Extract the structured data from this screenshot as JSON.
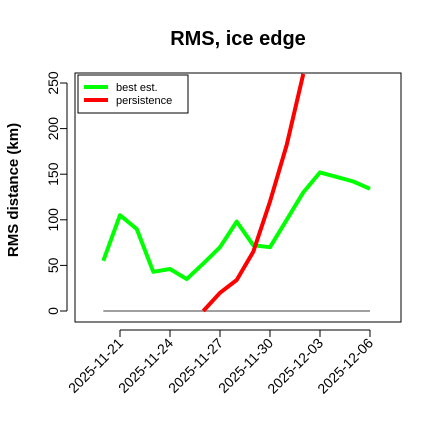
{
  "chart_data": {
    "type": "line",
    "title": "RMS, ice edge",
    "xlabel": "",
    "ylabel": "RMS distance (km)",
    "ylim": [
      0,
      260
    ],
    "yticks": [
      0,
      50,
      100,
      150,
      200,
      250
    ],
    "xticks": [
      "2025-11-21",
      "2025-11-24",
      "2025-11-27",
      "2025-11-30",
      "2025-12-03",
      "2025-12-06"
    ],
    "grid": false,
    "legend_position": "top-left",
    "series": [
      {
        "name": "best est.",
        "color": "#00ff00",
        "x": [
          "2025-11-20",
          "2025-11-21",
          "2025-11-22",
          "2025-11-23",
          "2025-11-24",
          "2025-11-25",
          "2025-11-26",
          "2025-11-27",
          "2025-11-28",
          "2025-11-29",
          "2025-11-30",
          "2025-12-01",
          "2025-12-02",
          "2025-12-03",
          "2025-12-04",
          "2025-12-05",
          "2025-12-06"
        ],
        "values": [
          55,
          105,
          90,
          43,
          46,
          35,
          52,
          70,
          98,
          72,
          70,
          100,
          130,
          152,
          147,
          142,
          134
        ]
      },
      {
        "name": "persistence",
        "color": "#ff0000",
        "x": [
          "2025-11-26",
          "2025-11-27",
          "2025-11-28",
          "2025-11-29",
          "2025-11-30",
          "2025-12-01",
          "2025-12-02"
        ],
        "values": [
          0,
          20,
          34,
          65,
          120,
          182,
          260
        ]
      }
    ],
    "baseline": {
      "color": "#808080",
      "value": 0,
      "x_start": "2025-11-20",
      "x_end": "2025-12-06"
    }
  }
}
